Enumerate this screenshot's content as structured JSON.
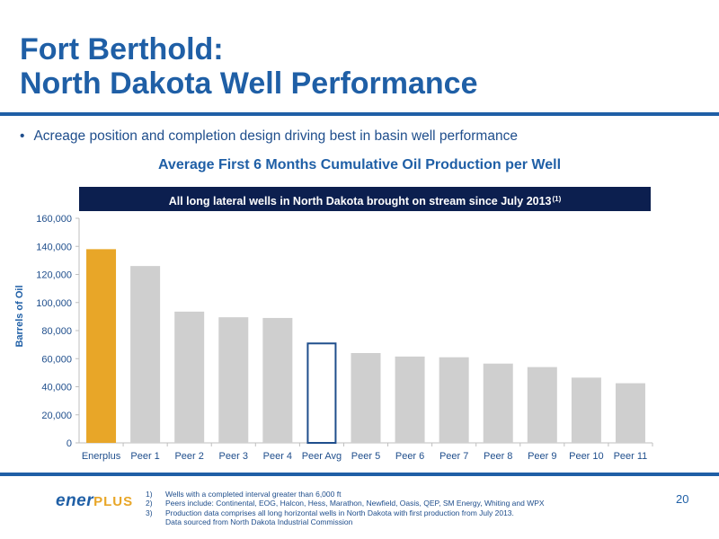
{
  "slide": {
    "title_line1": "Fort Berthold:",
    "title_line2": "North Dakota Well Performance",
    "bullet": "Acreage position and completion design driving best in basin well performance",
    "page_number": "20",
    "logo_part1": "ener",
    "logo_part2": "PLUS"
  },
  "colors": {
    "title": "#1f5fa6",
    "rule": "#1f5fa6",
    "banner": "#0c1f4f",
    "enerplus_bar": "#e8a628",
    "peer_bar": "#cfcfcf",
    "peer_avg_outline": "#1f4e8c",
    "logo_ener": "#1f5fa6",
    "logo_plus": "#e8a628"
  },
  "chart_data": {
    "type": "bar",
    "title": "Average First 6 Months Cumulative Oil Production per Well",
    "banner": "All long lateral wells in North Dakota brought on stream since July 2013",
    "banner_sup": "(1)",
    "ylabel": "Barrels of Oil",
    "xlabel": "",
    "ylim": [
      0,
      160000
    ],
    "yticks": [
      0,
      20000,
      40000,
      60000,
      80000,
      100000,
      120000,
      140000,
      160000
    ],
    "ytick_labels": [
      "0",
      "20,000",
      "40,000",
      "60,000",
      "80,000",
      "100,000",
      "120,000",
      "140,000",
      "160,000"
    ],
    "categories": [
      "Enerplus",
      "Peer 1",
      "Peer 2",
      "Peer 3",
      "Peer 4",
      "Peer Avg",
      "Peer 5",
      "Peer 6",
      "Peer 7",
      "Peer 8",
      "Peer 9",
      "Peer 10",
      "Peer 11"
    ],
    "values": [
      138000,
      126000,
      93500,
      89500,
      89000,
      71500,
      64000,
      61500,
      61000,
      56500,
      54000,
      46500,
      42500
    ],
    "highlight": "Enerplus",
    "outlined": "Peer Avg",
    "grid": false
  },
  "footnotes": [
    {
      "num": "1)",
      "text": "Wells with a completed interval greater than 6,000 ft"
    },
    {
      "num": "2)",
      "text": "Peers include: Continental, EOG, Halcon, Hess, Marathon, Newfield, Oasis, QEP, SM Energy, Whiting and WPX"
    },
    {
      "num": "3)",
      "text": "Production data comprises all long horizontal wells in North Dakota with first production from July 2013."
    },
    {
      "num": "",
      "text": "Data sourced from North Dakota Industrial Commission"
    }
  ]
}
